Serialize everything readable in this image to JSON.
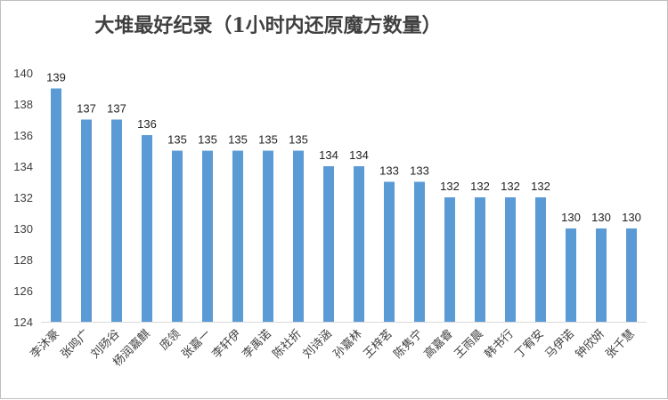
{
  "chart_data": {
    "type": "bar",
    "title": "大堆最好纪录（1小时内还原魔方数量）",
    "xlabel": "",
    "ylabel": "",
    "categories": [
      "李沐豪",
      "张鸣广",
      "刘旸谷",
      "杨润嘉麒",
      "庞领",
      "张嘉一",
      "李轩伊",
      "李禹诺",
      "陈社折",
      "刘诗涵",
      "孙嘉林",
      "王梓茗",
      "陈隽宁",
      "高嘉睿",
      "王雨晨",
      "韩书行",
      "丁宥安",
      "马伊诺",
      "钟欣妍",
      "张千慧"
    ],
    "values": [
      139,
      137,
      137,
      136,
      135,
      135,
      135,
      135,
      135,
      134,
      134,
      133,
      133,
      132,
      132,
      132,
      132,
      130,
      130,
      130
    ],
    "ylim": [
      124,
      140
    ],
    "yticks": [
      124,
      126,
      128,
      130,
      132,
      134,
      136,
      138,
      140
    ],
    "grid": false,
    "legend": "none",
    "data_labels": true,
    "colors": {
      "bar": "#5b9bd5",
      "axis": "#d9d9d9",
      "text": "#404040"
    }
  }
}
